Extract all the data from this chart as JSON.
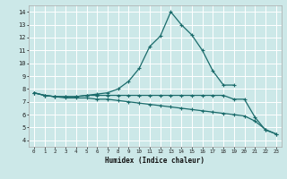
{
  "xlabel": "Humidex (Indice chaleur)",
  "bg_color": "#cce8e8",
  "grid_color": "#ffffff",
  "line_color": "#1a6b6b",
  "xlim": [
    -0.5,
    23.5
  ],
  "ylim": [
    3.5,
    14.5
  ],
  "xticks": [
    0,
    1,
    2,
    3,
    4,
    5,
    6,
    7,
    8,
    9,
    10,
    11,
    12,
    13,
    14,
    15,
    16,
    17,
    18,
    19,
    20,
    21,
    22,
    23
  ],
  "yticks": [
    4,
    5,
    6,
    7,
    8,
    9,
    10,
    11,
    12,
    13,
    14
  ],
  "line1_x": [
    0,
    1,
    2,
    3,
    4,
    5,
    6,
    7,
    8,
    9,
    10,
    11,
    12,
    13,
    14,
    15,
    16,
    17,
    18,
    19
  ],
  "line1_y": [
    7.7,
    7.5,
    7.4,
    7.4,
    7.4,
    7.5,
    7.6,
    7.7,
    8.0,
    8.6,
    9.6,
    11.3,
    12.1,
    14.0,
    13.0,
    12.2,
    11.0,
    9.4,
    8.3,
    8.3
  ],
  "line2_x": [
    0,
    1,
    2,
    3,
    4,
    5,
    6,
    7,
    8,
    9,
    10,
    11,
    12,
    13,
    14,
    15,
    16,
    17,
    18,
    19,
    20,
    21,
    22,
    23
  ],
  "line2_y": [
    7.7,
    7.5,
    7.4,
    7.4,
    7.4,
    7.5,
    7.5,
    7.5,
    7.5,
    7.5,
    7.5,
    7.5,
    7.5,
    7.5,
    7.5,
    7.5,
    7.5,
    7.5,
    7.5,
    7.2,
    7.2,
    5.8,
    4.8,
    4.5
  ],
  "line3_x": [
    0,
    1,
    2,
    3,
    4,
    5,
    6,
    7,
    8,
    9,
    10,
    11,
    12,
    13,
    14,
    15,
    16,
    17,
    18,
    19,
    20,
    21,
    22,
    23
  ],
  "line3_y": [
    7.7,
    7.5,
    7.4,
    7.3,
    7.3,
    7.3,
    7.2,
    7.2,
    7.1,
    7.0,
    6.9,
    6.8,
    6.7,
    6.6,
    6.5,
    6.4,
    6.3,
    6.2,
    6.1,
    6.0,
    5.9,
    5.5,
    4.85,
    4.5
  ]
}
